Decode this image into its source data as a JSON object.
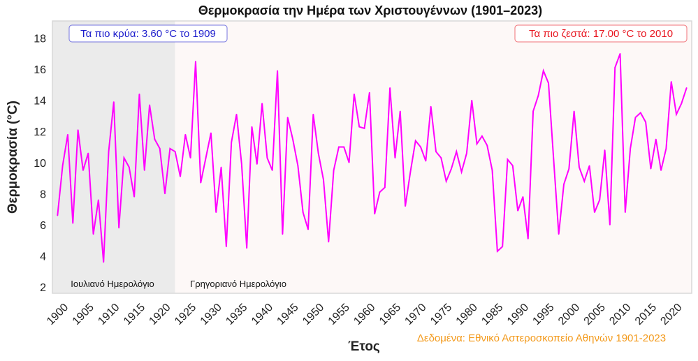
{
  "chart_data": {
    "type": "line",
    "title": "Θερμοκρασία την Ημέρα των Χριστουγέννων (1901–2023)",
    "xlabel": "Έτος",
    "ylabel": "Θερμοκρασία (°C)",
    "xlim": [
      1899,
      2024
    ],
    "ylim": [
      1.6,
      19.1
    ],
    "x_ticks": [
      1900,
      1905,
      1910,
      1915,
      1920,
      1925,
      1930,
      1935,
      1940,
      1945,
      1950,
      1955,
      1960,
      1965,
      1970,
      1975,
      1980,
      1985,
      1990,
      1995,
      2000,
      2005,
      2010,
      2015,
      2020
    ],
    "y_ticks": [
      2,
      4,
      6,
      8,
      10,
      12,
      14,
      16,
      18
    ],
    "grid": false,
    "line_color": "#ff00ff",
    "x_start": 1900,
    "values": [
      6.6,
      9.8,
      11.8,
      6.1,
      12.1,
      9.5,
      10.6,
      5.4,
      7.6,
      3.6,
      10.7,
      13.9,
      5.8,
      10.3,
      9.7,
      7.8,
      14.4,
      9.5,
      13.7,
      11.5,
      10.9,
      8.0,
      10.9,
      10.7,
      9.1,
      11.8,
      10.3,
      16.5,
      8.7,
      10.3,
      11.9,
      6.8,
      9.7,
      4.6,
      11.3,
      13.1,
      9.9,
      4.5,
      12.3,
      9.9,
      13.8,
      10.3,
      9.5,
      15.9,
      5.4,
      12.9,
      11.5,
      9.8,
      6.8,
      5.7,
      13.1,
      10.6,
      8.9,
      4.9,
      9.5,
      11.0,
      11.0,
      10.0,
      14.4,
      12.3,
      12.2,
      14.5,
      6.7,
      8.1,
      8.4,
      14.8,
      10.3,
      13.3,
      7.2,
      9.4,
      11.4,
      11.0,
      10.1,
      13.6,
      10.7,
      10.3,
      8.8,
      9.6,
      10.7,
      9.4,
      10.6,
      14.0,
      11.2,
      11.7,
      11.1,
      9.5,
      4.3,
      4.6,
      10.2,
      9.8,
      6.9,
      7.8,
      5.1,
      13.3,
      14.3,
      15.9,
      15.1,
      10.2,
      5.4,
      8.6,
      9.6,
      13.3,
      9.7,
      8.8,
      9.8,
      6.8,
      7.6,
      10.8,
      6.0,
      16.1,
      17.0,
      6.8,
      10.9,
      12.9,
      13.2,
      12.6,
      9.6,
      11.5,
      9.5,
      10.9,
      15.2,
      13.1,
      13.8,
      14.8
    ],
    "regions": [
      {
        "label": "Ιουλιανό Ημερολόγιο",
        "from": 1899,
        "to": 1923,
        "color": "#ebebeb"
      },
      {
        "label": "Γρηγοριανό Ημερολόγιο",
        "from": 1923,
        "to": 2024,
        "color": "#fdf8f7"
      }
    ],
    "annotations": {
      "coldest": {
        "text": "Τα πιο κρύα: 3.60 °C το 1909",
        "color": "#1a1acc"
      },
      "warmest": {
        "text": "Τα πιο ζεστά: 17.00 °C το 2010",
        "color": "#e8141e"
      },
      "source": {
        "text": "Δεδομένα: Εθνικό Αστεροσκοπείο Αθηνών 1901-2023",
        "color": "#f39a1c"
      }
    }
  }
}
